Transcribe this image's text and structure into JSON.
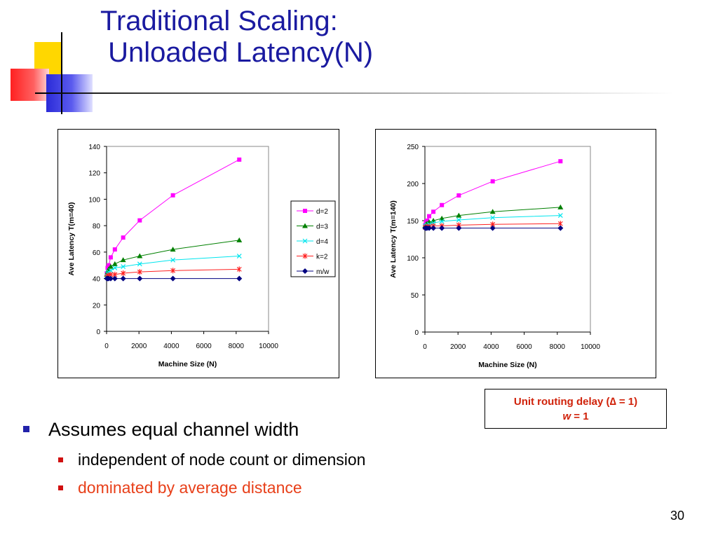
{
  "title": "Traditional Scaling:\n Unloaded Latency(N)",
  "page_number": "30",
  "note": {
    "line1": "Unit routing delay (∆ = 1)",
    "line2_var": "w",
    "line2_rest": " = 1"
  },
  "bullets": {
    "main": "Assumes equal channel width",
    "sub": [
      "independent of node count or dimension",
      "dominated by average distance"
    ]
  },
  "colors": {
    "title": "#1a1aa0",
    "note": "#d0220a",
    "highlight": "#e8401a",
    "bullet_main": "#2222aa",
    "bullet_sub": "#d01010"
  },
  "chart_data": [
    {
      "type": "line",
      "xlabel": "Machine Size (N)",
      "ylabel": "Ave Latency T(m=40)",
      "xlim": [
        0,
        10000
      ],
      "ylim": [
        0,
        140
      ],
      "xticks": [
        0,
        2000,
        4000,
        6000,
        8000,
        10000
      ],
      "yticks": [
        0,
        20,
        40,
        60,
        80,
        100,
        120,
        140
      ],
      "grid": false,
      "legend": "right",
      "series": [
        {
          "name": "d=2",
          "color": "#ff00ff",
          "marker": "square",
          "x": [
            16,
            64,
            128,
            256,
            512,
            1024,
            2048,
            4096,
            8192
          ],
          "y": [
            44,
            48,
            50,
            56,
            62,
            71,
            84,
            103,
            130
          ]
        },
        {
          "name": "d=3",
          "color": "#008000",
          "marker": "triangle",
          "x": [
            16,
            64,
            128,
            256,
            512,
            1024,
            2048,
            4096,
            8192
          ],
          "y": [
            43,
            45,
            47,
            49,
            51,
            54,
            57,
            62,
            69
          ]
        },
        {
          "name": "d=4",
          "color": "#00e5ee",
          "marker": "x",
          "x": [
            16,
            64,
            128,
            256,
            512,
            1024,
            2048,
            4096,
            8192
          ],
          "y": [
            42,
            44,
            45,
            46,
            48,
            49,
            51,
            54,
            57
          ]
        },
        {
          "name": "k=2",
          "color": "#ff2020",
          "marker": "star",
          "x": [
            16,
            64,
            128,
            256,
            512,
            1024,
            2048,
            4096,
            8192
          ],
          "y": [
            41,
            42,
            42,
            43,
            43,
            44,
            45,
            46,
            47
          ]
        },
        {
          "name": "m/w",
          "color": "#000080",
          "marker": "diamond",
          "x": [
            16,
            64,
            128,
            256,
            512,
            1024,
            2048,
            4096,
            8192
          ],
          "y": [
            40,
            40,
            40,
            40,
            40,
            40,
            40,
            40,
            40
          ]
        }
      ]
    },
    {
      "type": "line",
      "xlabel": "Machine Size (N)",
      "ylabel": "Ave Latency T(m=140)",
      "xlim": [
        0,
        10000
      ],
      "ylim": [
        0,
        250
      ],
      "xticks": [
        0,
        2000,
        4000,
        6000,
        8000,
        10000
      ],
      "yticks": [
        0,
        50,
        100,
        150,
        200,
        250
      ],
      "grid": false,
      "legend": "none",
      "series": [
        {
          "name": "d=2",
          "color": "#ff00ff",
          "marker": "square",
          "x": [
            16,
            64,
            128,
            256,
            512,
            1024,
            2048,
            4096,
            8192
          ],
          "y": [
            144,
            148,
            150,
            156,
            162,
            171,
            184,
            203,
            230
          ]
        },
        {
          "name": "d=3",
          "color": "#008000",
          "marker": "triangle",
          "x": [
            16,
            64,
            128,
            256,
            512,
            1024,
            2048,
            4096,
            8192
          ],
          "y": [
            143,
            145,
            146,
            148,
            150,
            153,
            157,
            162,
            168
          ]
        },
        {
          "name": "d=4",
          "color": "#00e5ee",
          "marker": "x",
          "x": [
            16,
            64,
            128,
            256,
            512,
            1024,
            2048,
            4096,
            8192
          ],
          "y": [
            142,
            143,
            144,
            145,
            147,
            149,
            151,
            154,
            157
          ]
        },
        {
          "name": "k=2",
          "color": "#ff2020",
          "marker": "star",
          "x": [
            16,
            64,
            128,
            256,
            512,
            1024,
            2048,
            4096,
            8192
          ],
          "y": [
            141,
            141,
            142,
            142,
            143,
            143,
            144,
            145,
            146
          ]
        },
        {
          "name": "m/w",
          "color": "#000080",
          "marker": "diamond",
          "x": [
            16,
            64,
            128,
            256,
            512,
            1024,
            2048,
            4096,
            8192
          ],
          "y": [
            140,
            140,
            140,
            140,
            140,
            140,
            140,
            140,
            140
          ]
        }
      ]
    }
  ]
}
